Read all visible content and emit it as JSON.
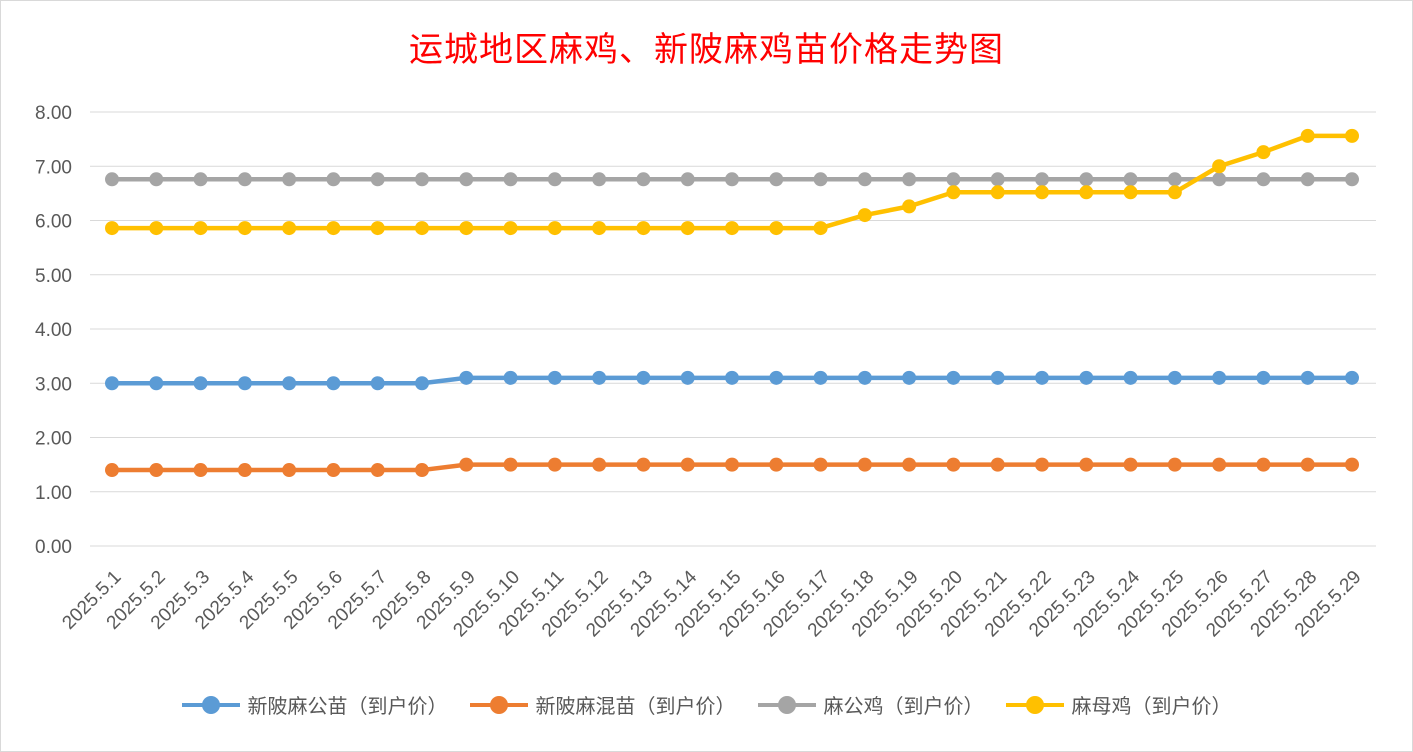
{
  "title": "运城地区麻鸡、新陂麻鸡苗价格走势图",
  "chart_data": {
    "type": "line",
    "title": "运城地区麻鸡、新陂麻鸡苗价格走势图",
    "xlabel": "",
    "ylabel": "",
    "ylim": [
      0,
      8
    ],
    "yticks": [
      "0.00",
      "1.00",
      "2.00",
      "3.00",
      "4.00",
      "5.00",
      "6.00",
      "7.00",
      "8.00"
    ],
    "grid": true,
    "legend_position": "bottom",
    "x": [
      "2025.5.1",
      "2025.5.2",
      "2025.5.3",
      "2025.5.4",
      "2025.5.5",
      "2025.5.6",
      "2025.5.7",
      "2025.5.8",
      "2025.5.9",
      "2025.5.10",
      "2025.5.11",
      "2025.5.12",
      "2025.5.13",
      "2025.5.14",
      "2025.5.15",
      "2025.5.16",
      "2025.5.17",
      "2025.5.18",
      "2025.5.19",
      "2025.5.20",
      "2025.5.21",
      "2025.5.22",
      "2025.5.23",
      "2025.5.24",
      "2025.5.25",
      "2025.5.26",
      "2025.5.27",
      "2025.5.28",
      "2025.5.29"
    ],
    "series": [
      {
        "name": "新陂麻公苗（到户价）",
        "color": "#5b9bd5",
        "values": [
          3.0,
          3.0,
          3.0,
          3.0,
          3.0,
          3.0,
          3.0,
          3.0,
          3.1,
          3.1,
          3.1,
          3.1,
          3.1,
          3.1,
          3.1,
          3.1,
          3.1,
          3.1,
          3.1,
          3.1,
          3.1,
          3.1,
          3.1,
          3.1,
          3.1,
          3.1,
          3.1,
          3.1,
          3.1
        ]
      },
      {
        "name": "新陂麻混苗（到户价）",
        "color": "#ed7d31",
        "values": [
          1.4,
          1.4,
          1.4,
          1.4,
          1.4,
          1.4,
          1.4,
          1.4,
          1.5,
          1.5,
          1.5,
          1.5,
          1.5,
          1.5,
          1.5,
          1.5,
          1.5,
          1.5,
          1.5,
          1.5,
          1.5,
          1.5,
          1.5,
          1.5,
          1.5,
          1.5,
          1.5,
          1.5,
          1.5
        ]
      },
      {
        "name": "麻公鸡（到户价）",
        "color": "#a5a5a5",
        "values": [
          6.76,
          6.76,
          6.76,
          6.76,
          6.76,
          6.76,
          6.76,
          6.76,
          6.76,
          6.76,
          6.76,
          6.76,
          6.76,
          6.76,
          6.76,
          6.76,
          6.76,
          6.76,
          6.76,
          6.76,
          6.76,
          6.76,
          6.76,
          6.76,
          6.76,
          6.76,
          6.76,
          6.76,
          6.76
        ]
      },
      {
        "name": "麻母鸡（到户价）",
        "color": "#ffc000",
        "values": [
          5.86,
          5.86,
          5.86,
          5.86,
          5.86,
          5.86,
          5.86,
          5.86,
          5.86,
          5.86,
          5.86,
          5.86,
          5.86,
          5.86,
          5.86,
          5.86,
          5.86,
          6.1,
          6.26,
          6.52,
          6.52,
          6.52,
          6.52,
          6.52,
          6.52,
          7.0,
          7.26,
          7.56,
          7.56
        ]
      }
    ]
  }
}
